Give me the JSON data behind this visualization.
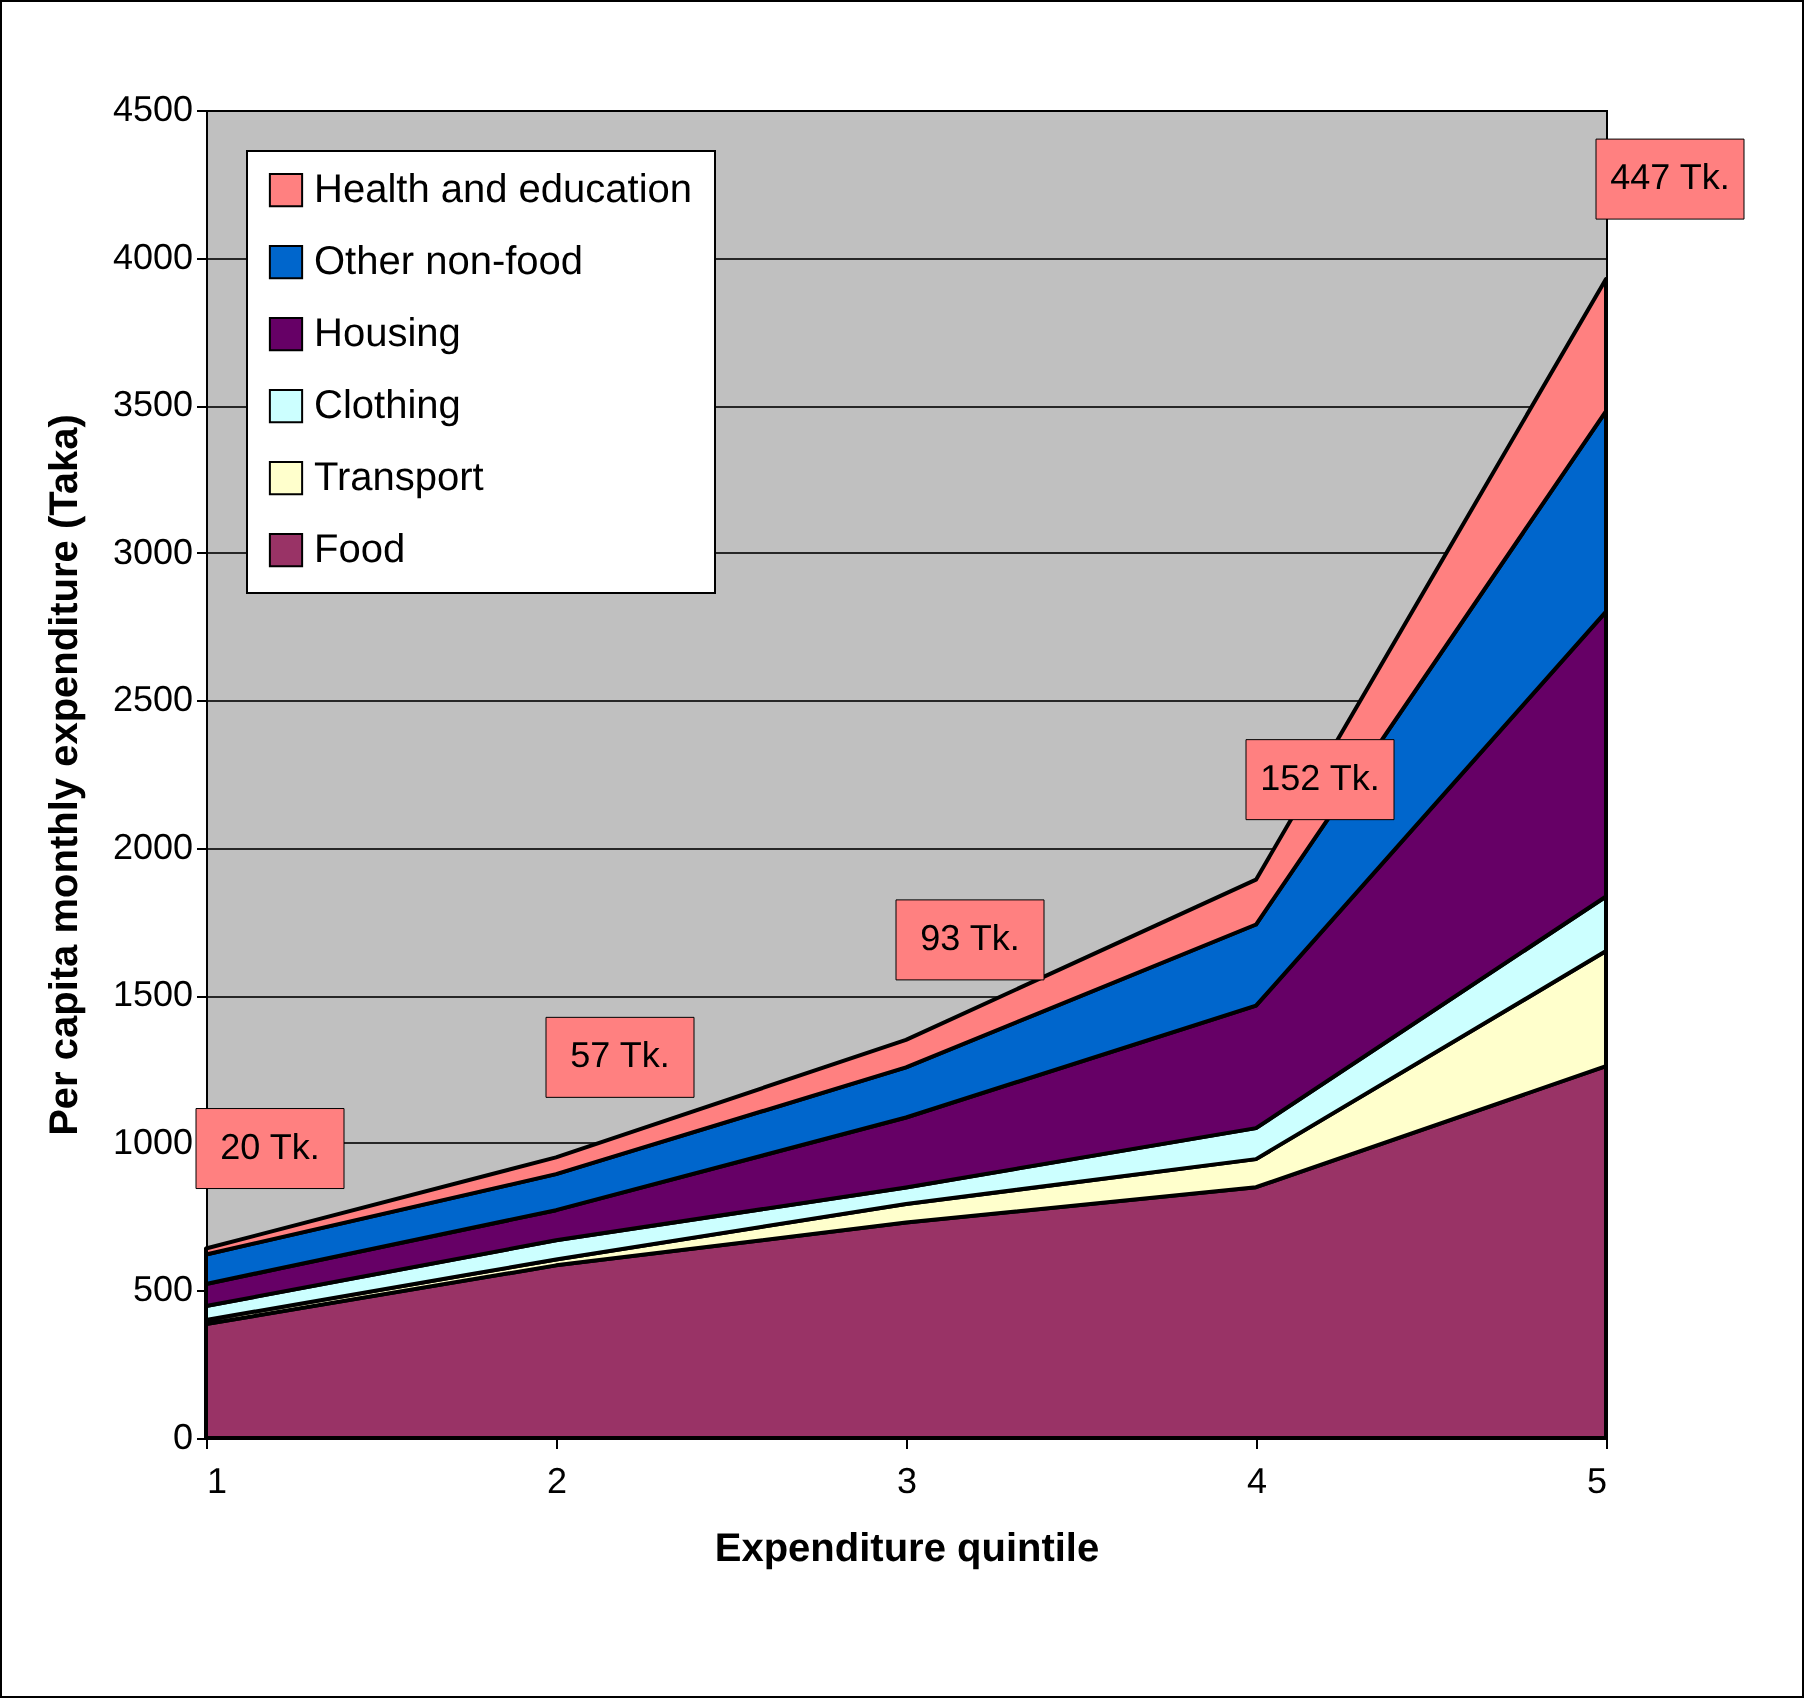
{
  "chart_data": {
    "type": "area",
    "stacked": true,
    "xlabel": "Expenditure quintile",
    "ylabel": "Per capita monthly expenditure (Taka)",
    "x": [
      1,
      2,
      3,
      4,
      5
    ],
    "xlim": [
      1,
      5
    ],
    "xticks": [
      1,
      2,
      3,
      4,
      5
    ],
    "ylim": [
      0,
      4500
    ],
    "yticks": [
      0,
      500,
      1000,
      1500,
      2000,
      2500,
      3000,
      3500,
      4000,
      4500
    ],
    "grid": "y",
    "legend": "top left",
    "series": [
      {
        "name": "Food",
        "color": "#993366",
        "values": [
          386,
          585,
          730,
          850,
          1260
        ]
      },
      {
        "name": "Transport",
        "color": "#ffffcc",
        "values": [
          14,
          20,
          63,
          95,
          390
        ]
      },
      {
        "name": "Clothing",
        "color": "#ccffff",
        "values": [
          47,
          65,
          56,
          105,
          185
        ]
      },
      {
        "name": "Housing",
        "color": "#660066",
        "values": [
          75,
          102,
          237,
          415,
          965
        ]
      },
      {
        "name": "Other non-food",
        "color": "#0066cc",
        "values": [
          100,
          122,
          170,
          275,
          680
        ]
      },
      {
        "name": "Health and education",
        "color": "#ff8080",
        "values": [
          20,
          57,
          93,
          152,
          447
        ],
        "value_labels": [
          "20 Tk.",
          "57 Tk.",
          "93 Tk.",
          "152 Tk.",
          "447 Tk."
        ]
      }
    ]
  }
}
